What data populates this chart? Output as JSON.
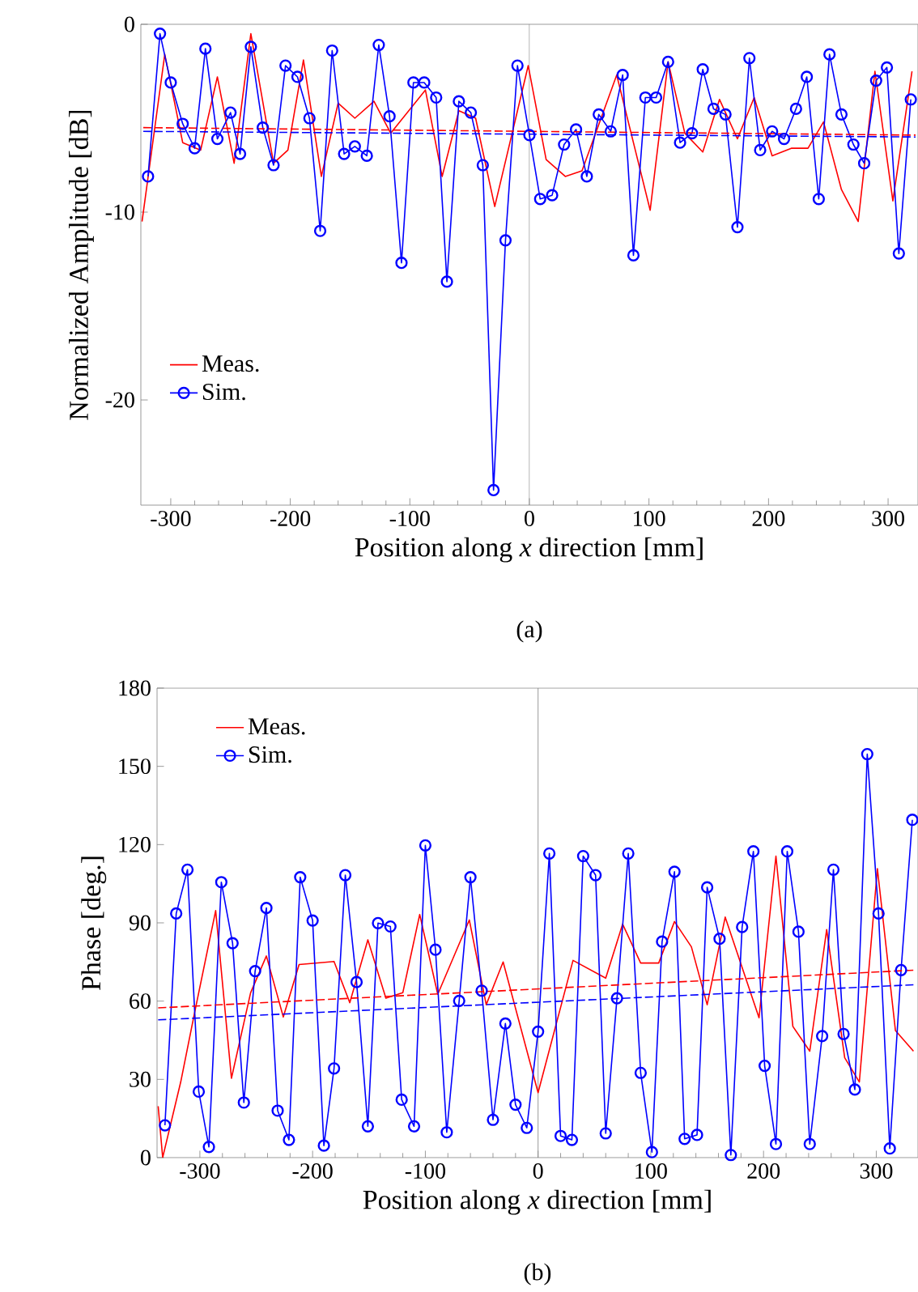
{
  "chart_data": [
    {
      "type": "line",
      "xlabel": "Position along *x* direction [mm]",
      "ylabel": "Normalized Amplitude [dB]",
      "xlim": [
        -325,
        325
      ],
      "ylim": [
        -25.6,
        0
      ],
      "xticks": [
        -300,
        -200,
        -100,
        0,
        100,
        200,
        300
      ],
      "yticks": [
        -20,
        -10,
        0
      ],
      "legend": "bottom left",
      "annotations": [
        "(a)"
      ],
      "ref_lines": [
        {
          "axis": "x",
          "value": 0,
          "color": "#808080"
        }
      ],
      "series": [
        {
          "name": "Meas.",
          "color": "#ff0000",
          "x": [
            -324,
            -305,
            -290,
            -275,
            -261,
            -247,
            -233,
            -214,
            -202,
            -189,
            -174,
            -160,
            -146,
            -130,
            -116,
            -87,
            -73,
            -59,
            -45,
            -29,
            -1,
            14,
            30,
            44,
            73,
            101,
            116,
            130,
            145,
            159,
            174,
            188,
            203,
            219,
            233,
            246,
            261,
            275,
            289,
            304,
            320
          ],
          "values": [
            -10.5,
            -1.6,
            -6.3,
            -6.7,
            -2.8,
            -7.4,
            -0.5,
            -7.4,
            -6.7,
            -1.9,
            -8.1,
            -4.2,
            -5.0,
            -4.1,
            -5.8,
            -3.5,
            -8.1,
            -4.6,
            -5.0,
            -9.7,
            -2.2,
            -7.2,
            -8.1,
            -7.8,
            -2.7,
            -9.9,
            -2.0,
            -5.8,
            -6.8,
            -4.0,
            -6.1,
            -3.9,
            -7.0,
            -6.6,
            -6.6,
            -5.2,
            -8.8,
            -10.5,
            -2.5,
            -9.4,
            -2.5
          ]
        },
        {
          "name": "Sim.",
          "color": "#0000ff",
          "marker": "circle",
          "x": [
            -319,
            -309,
            -300,
            -290,
            -280,
            -271,
            -261,
            -250,
            -242,
            -233,
            -223,
            -214,
            -204,
            -194,
            -184,
            -175,
            -165,
            -155,
            -146,
            -136,
            -126,
            -117,
            -107,
            -97,
            -88,
            -78,
            -69,
            -59,
            -49,
            -39,
            -30,
            -20,
            -10,
            0,
            9,
            19,
            29,
            39,
            48,
            58,
            68,
            78,
            87,
            97,
            106,
            116,
            126,
            136,
            145,
            154,
            164,
            174,
            184,
            193,
            203,
            213,
            223,
            232,
            242,
            251,
            261,
            271,
            280,
            290,
            299,
            309,
            319
          ],
          "values": [
            -8.1,
            -0.5,
            -3.1,
            -5.3,
            -6.6,
            -1.3,
            -6.1,
            -4.7,
            -6.9,
            -1.2,
            -5.5,
            -7.5,
            -2.2,
            -2.8,
            -5.0,
            -11.0,
            -1.4,
            -6.9,
            -6.5,
            -7.0,
            -1.1,
            -4.9,
            -12.7,
            -3.1,
            -3.1,
            -3.9,
            -13.7,
            -4.1,
            -4.7,
            -7.5,
            -24.8,
            -11.5,
            -2.2,
            -5.9,
            -9.3,
            -9.1,
            -6.4,
            -5.6,
            -8.1,
            -4.8,
            -5.7,
            -2.7,
            -12.3,
            -3.9,
            -3.9,
            -2.0,
            -6.3,
            -5.8,
            -2.4,
            -4.5,
            -4.8,
            -10.8,
            -1.8,
            -6.7,
            -5.7,
            -6.1,
            -4.5,
            -2.8,
            -9.3,
            -1.6,
            -4.8,
            -6.4,
            -7.4,
            -3.0,
            -2.3,
            -12.2,
            -4.0
          ]
        },
        {
          "type": "line",
          "color": "#ff0000",
          "line_style": "dashed",
          "x": [
            -323,
            323
          ],
          "values": [
            -5.5,
            -5.9
          ]
        },
        {
          "type": "line",
          "color": "#0000ff",
          "line_style": "dashed",
          "x": [
            -323,
            323
          ],
          "values": [
            -5.7,
            -6.0
          ]
        }
      ]
    },
    {
      "type": "line",
      "xlabel": "Position along *x* direction [mm]",
      "ylabel": "Phase [deg.]",
      "xlim": [
        -338,
        337
      ],
      "ylim": [
        0,
        180
      ],
      "xticks": [
        -300,
        -200,
        -100,
        0,
        100,
        200,
        300
      ],
      "yticks": [
        0,
        30,
        60,
        90,
        120,
        150,
        180
      ],
      "legend": "top left",
      "annotations": [
        "(b)"
      ],
      "ref_lines": [
        {
          "axis": "x",
          "value": 0,
          "color": "#808080"
        }
      ],
      "series": [
        {
          "name": "Meas.",
          "color": "#ff0000",
          "x": [
            -337,
            -333,
            -317,
            -305,
            -286,
            -272,
            -255,
            -241,
            -226,
            -212,
            -181,
            -167,
            -151,
            -135,
            -120,
            -105,
            -89,
            -61,
            -46,
            -31,
            0,
            31,
            60,
            75,
            91,
            107,
            121,
            136,
            150,
            166,
            196,
            211,
            226,
            241,
            256,
            272,
            285,
            301,
            317,
            333
          ],
          "values": [
            19.7,
            0,
            29.0,
            54.9,
            94.7,
            30.4,
            63.2,
            77.3,
            53.9,
            74.0,
            75.2,
            59.4,
            83.5,
            61.1,
            63.2,
            93.2,
            62.6,
            91.1,
            58.6,
            75.0,
            24.9,
            75.6,
            68.8,
            89.5,
            74.6,
            74.6,
            90.5,
            80.8,
            58.6,
            92.2,
            53.6,
            115.6,
            50.3,
            40.8,
            87.4,
            38.3,
            29.0,
            110.8,
            48.7,
            40.8
          ]
        },
        {
          "name": "Sim.",
          "color": "#0000ff",
          "marker": "circle",
          "x": [
            -331,
            -321,
            -311,
            -301,
            -292,
            -281,
            -271,
            -261,
            -251,
            -241,
            -231,
            -221,
            -211,
            -200,
            -190,
            -181,
            -171,
            -161,
            -151,
            -142,
            -131,
            -121,
            -110,
            -100,
            -91,
            -81,
            -70,
            -60,
            -50,
            -40,
            -29,
            -20,
            -10,
            0,
            10,
            20,
            30,
            40,
            51,
            60,
            70,
            80,
            91,
            101,
            110,
            121,
            130,
            141,
            150,
            161,
            171,
            181,
            191,
            201,
            211,
            221,
            231,
            241,
            252,
            262,
            271,
            281,
            292,
            302,
            312,
            322,
            332
          ],
          "values": [
            12.4,
            93.6,
            110.4,
            25.3,
            4.1,
            105.6,
            82.2,
            21.1,
            71.5,
            95.7,
            18.0,
            6.8,
            107.5,
            90.9,
            4.6,
            34.2,
            108.3,
            67.3,
            12.0,
            89.9,
            88.6,
            22.2,
            12.0,
            119.7,
            79.7,
            9.7,
            60.1,
            107.5,
            64.0,
            14.5,
            51.4,
            20.3,
            11.4,
            48.3,
            116.6,
            8.3,
            6.8,
            115.6,
            108.3,
            9.3,
            61.1,
            116.6,
            32.5,
            2.1,
            82.8,
            109.6,
            7.2,
            8.7,
            103.6,
            83.9,
            1.0,
            88.4,
            117.4,
            35.2,
            5.2,
            117.4,
            86.6,
            5.2,
            46.6,
            110.4,
            47.4,
            26.1,
            154.7,
            93.6,
            3.5,
            71.9,
            129.5
          ]
        },
        {
          "type": "line",
          "color": "#ff0000",
          "line_style": "dashed",
          "x": [
            -337,
            335
          ],
          "values": [
            57.4,
            71.9
          ]
        },
        {
          "type": "line",
          "color": "#0000ff",
          "line_style": "dashed",
          "x": [
            -337,
            335
          ],
          "values": [
            52.8,
            66.3
          ]
        }
      ]
    }
  ]
}
